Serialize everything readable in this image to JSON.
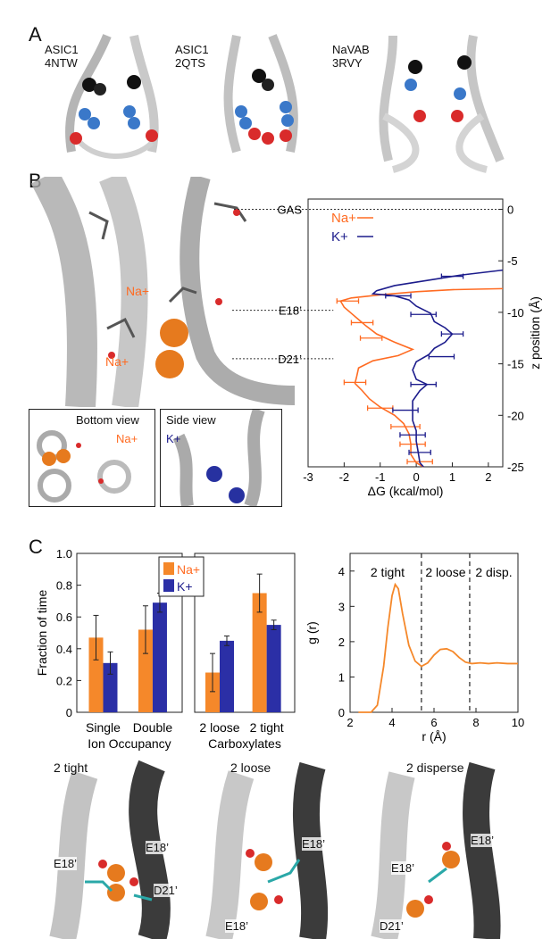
{
  "panels": {
    "a": {
      "letter": "A",
      "structures": [
        {
          "line1": "ASIC1",
          "line2": "4NTW"
        },
        {
          "line1": "ASIC1",
          "line2": "2QTS"
        },
        {
          "line1": "NaVAB",
          "line2": "3RVY"
        }
      ]
    },
    "b": {
      "letter": "B",
      "ion_label_top": "Na+",
      "ion_label_bottom": "Na+",
      "inset_bottom": {
        "title": "Bottom view",
        "ion": "Na+"
      },
      "inset_side": {
        "title": "Side view",
        "ion": "K+"
      },
      "ref_labels": [
        "GAS",
        "E18’",
        "D21’"
      ]
    },
    "c": {
      "letter": "C",
      "snapshots": [
        {
          "title": "2 tight",
          "labels": [
            "E18’",
            "E18’",
            "D21’"
          ]
        },
        {
          "title": "2 loose",
          "labels": [
            "E18’",
            "E18’"
          ]
        },
        {
          "title": "2 disperse",
          "labels": [
            "E18’",
            "E18’",
            "D21’"
          ]
        }
      ]
    }
  },
  "colors": {
    "na": "#ff6b22",
    "k": "#1c1c8c",
    "na_bar": "#f5882a",
    "k_bar": "#2b2fa6"
  },
  "chart_data": [
    {
      "type": "line",
      "id": "pmf",
      "xlabel": "ΔG (kcal/mol)",
      "ylabel": "z position (Å)",
      "xlim": [
        -3,
        2.4
      ],
      "ylim": [
        -25,
        1
      ],
      "xticks": [
        "-3",
        "-2",
        "-1",
        "0",
        "1",
        "2"
      ],
      "yticks": [
        "0",
        "-5",
        "-10",
        "-15",
        "-20",
        "-25"
      ],
      "legend": [
        "Na+",
        "K+"
      ],
      "series": [
        {
          "name": "Na+",
          "points": [
            [
              2.4,
              -7.7
            ],
            [
              1.0,
              -7.8
            ],
            [
              0,
              -8.0
            ],
            [
              -1.0,
              -8.3
            ],
            [
              -1.8,
              -8.6
            ],
            [
              -2.1,
              -8.9
            ],
            [
              -2.0,
              -9.5
            ],
            [
              -1.8,
              -10.1
            ],
            [
              -1.6,
              -10.7
            ],
            [
              -1.4,
              -11.3
            ],
            [
              -1.1,
              -12.1
            ],
            [
              -0.6,
              -12.9
            ],
            [
              -0.1,
              -13.6
            ],
            [
              -0.5,
              -14.2
            ],
            [
              -1.2,
              -14.7
            ],
            [
              -1.6,
              -15.4
            ],
            [
              -1.65,
              -16.2
            ],
            [
              -1.7,
              -16.9
            ],
            [
              -1.5,
              -17.6
            ],
            [
              -1.3,
              -18.4
            ],
            [
              -1.0,
              -19.2
            ],
            [
              -0.6,
              -20.0
            ],
            [
              -0.35,
              -20.8
            ],
            [
              -0.2,
              -21.8
            ],
            [
              -0.15,
              -22.8
            ],
            [
              -0.15,
              -23.8
            ],
            [
              0,
              -24.6
            ],
            [
              0.2,
              -25
            ]
          ],
          "errorbars": [
            [
              -1.9,
              -8.9,
              0.3
            ],
            [
              -1.5,
              -11.0,
              0.3
            ],
            [
              -1.25,
              -12.5,
              0.3
            ],
            [
              -1.7,
              -16.8,
              0.3
            ],
            [
              -1.0,
              -19.3,
              0.35
            ],
            [
              -0.3,
              -21.1,
              0.4
            ],
            [
              -0.1,
              -22.8,
              0.35
            ],
            [
              0.1,
              -24.5,
              0.35
            ]
          ]
        },
        {
          "name": "K+",
          "points": [
            [
              2.4,
              -5.9
            ],
            [
              1.2,
              -6.4
            ],
            [
              0.3,
              -6.9
            ],
            [
              -0.6,
              -7.4
            ],
            [
              -1.1,
              -7.9
            ],
            [
              -1.2,
              -8.2
            ],
            [
              -0.6,
              -8.4
            ],
            [
              -0.2,
              -8.8
            ],
            [
              0,
              -9.4
            ],
            [
              0.4,
              -10.1
            ],
            [
              0.5,
              -10.9
            ],
            [
              0.8,
              -11.5
            ],
            [
              1.0,
              -12.1
            ],
            [
              0.8,
              -12.9
            ],
            [
              0.5,
              -13.5
            ],
            [
              0.35,
              -14.1
            ],
            [
              0.0,
              -14.8
            ],
            [
              -0.1,
              -15.6
            ],
            [
              0.0,
              -16.5
            ],
            [
              0.3,
              -17.0
            ],
            [
              0.1,
              -17.6
            ],
            [
              -0.1,
              -18.6
            ],
            [
              -0.1,
              -19.5
            ],
            [
              -0.1,
              -20.5
            ],
            [
              0.0,
              -21.5
            ],
            [
              0.0,
              -22.5
            ],
            [
              0.05,
              -23.5
            ],
            [
              0.1,
              -24.6
            ],
            [
              0.2,
              -25
            ]
          ],
          "errorbars": [
            [
              1.0,
              -6.5,
              0.3
            ],
            [
              -0.5,
              -8.4,
              0.35
            ],
            [
              0.2,
              -10.2,
              0.35
            ],
            [
              1.0,
              -12.1,
              0.3
            ],
            [
              0.7,
              -14.3,
              0.35
            ],
            [
              0.2,
              -17.0,
              0.35
            ],
            [
              -0.3,
              -19.5,
              0.35
            ],
            [
              -0.1,
              -21.9,
              0.35
            ],
            [
              0.1,
              -23.6,
              0.3
            ]
          ]
        }
      ],
      "reference_lines": [
        {
          "label": "GAS",
          "y": 0
        },
        {
          "label": "E18’",
          "y": -9.8
        },
        {
          "label": "D21’",
          "y": -14.5
        }
      ]
    },
    {
      "type": "bar",
      "id": "occupancy",
      "ylabel": "Fraction of time",
      "ylim": [
        0,
        1.0
      ],
      "yticks": [
        "0",
        "0.2",
        "0.4",
        "0.6",
        "0.8",
        "1.0"
      ],
      "legend": [
        "Na+",
        "K+"
      ],
      "groups": [
        {
          "label_line1": "Single",
          "label_line2": "Ion Occupancy",
          "subs": [
            "Single",
            "Double"
          ],
          "na": [
            0.47,
            0.52
          ],
          "na_err": [
            0.14,
            0.15
          ],
          "k": [
            0.31,
            0.69
          ],
          "k_err": [
            0.07,
            0.06
          ]
        },
        {
          "label_line1": "2 loose",
          "label_line2": "Carboxylates",
          "subs": [
            "2 loose",
            "2 tight"
          ],
          "na": [
            0.25,
            0.75
          ],
          "na_err": [
            0.12,
            0.12
          ],
          "k": [
            0.45,
            0.55
          ],
          "k_err": [
            0.03,
            0.03
          ]
        }
      ],
      "group_sublabels": [
        "Single",
        "Double",
        "2 loose",
        "2 tight"
      ],
      "group_bottom_labels": [
        "Ion Occupancy",
        "Carboxylates"
      ]
    },
    {
      "type": "line",
      "id": "rdf",
      "xlabel": "r (Å)",
      "ylabel": "g (r)",
      "xlim": [
        2,
        10
      ],
      "ylim": [
        0,
        4.5
      ],
      "xticks": [
        "2",
        "4",
        "6",
        "8",
        "10"
      ],
      "yticks": [
        "0",
        "1",
        "2",
        "3",
        "4"
      ],
      "regions": [
        "2 tight",
        "2 loose",
        "2 disp."
      ],
      "dividers": [
        5.4,
        7.7
      ],
      "series": [
        {
          "name": "g(r)",
          "points": [
            [
              2.4,
              0
            ],
            [
              3.0,
              0
            ],
            [
              3.3,
              0.2
            ],
            [
              3.6,
              1.3
            ],
            [
              3.8,
              2.4
            ],
            [
              4.0,
              3.3
            ],
            [
              4.15,
              3.62
            ],
            [
              4.3,
              3.5
            ],
            [
              4.5,
              2.8
            ],
            [
              4.8,
              1.9
            ],
            [
              5.1,
              1.45
            ],
            [
              5.4,
              1.3
            ],
            [
              5.7,
              1.4
            ],
            [
              6.0,
              1.62
            ],
            [
              6.3,
              1.78
            ],
            [
              6.6,
              1.8
            ],
            [
              6.9,
              1.72
            ],
            [
              7.2,
              1.55
            ],
            [
              7.5,
              1.42
            ],
            [
              7.8,
              1.38
            ],
            [
              8.2,
              1.4
            ],
            [
              8.6,
              1.38
            ],
            [
              9.0,
              1.4
            ],
            [
              9.5,
              1.38
            ],
            [
              10,
              1.38
            ]
          ]
        }
      ]
    }
  ]
}
